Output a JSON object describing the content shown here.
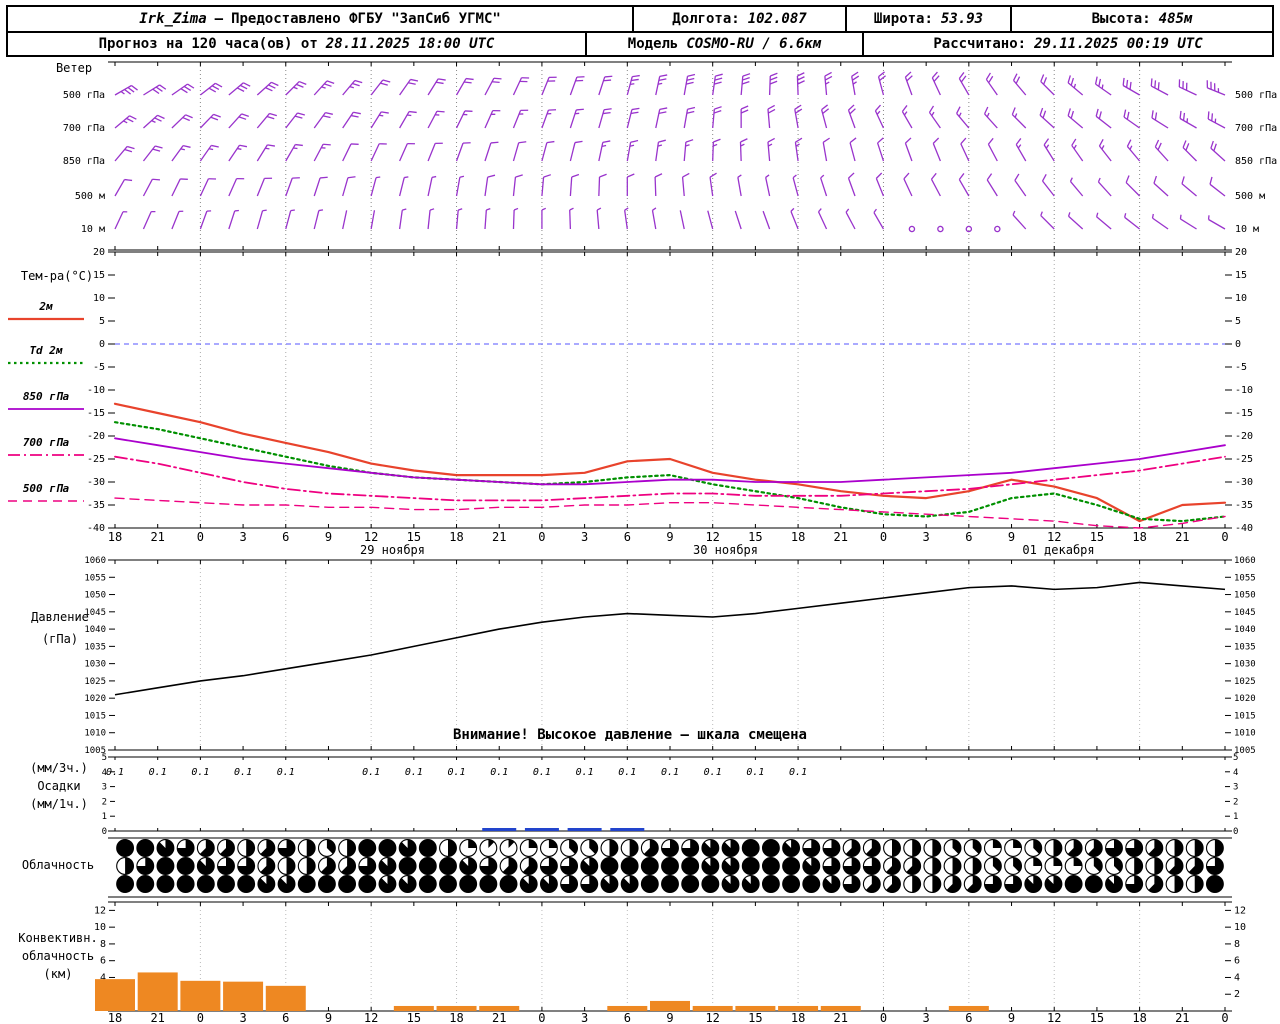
{
  "header": {
    "station": "Irk_Zima",
    "dash": "—",
    "provider": "Предоставлено ФГБУ \"ЗапСиб УГМС\"",
    "lon_label": "Долгота:",
    "lon_value": "102.087",
    "lat_label": "Широта:",
    "lat_value": "53.93",
    "alt_label": "Высота:",
    "alt_value": "485м",
    "forecast_text": "Прогноз на 120 часа(ов) от",
    "forecast_time": "28.11.2025 18:00 UTC",
    "model_label": "Модель",
    "model_value": "COSMO-RU / 6.6км",
    "calc_label": "Рассчитано:",
    "calc_time": "29.11.2025 00:19 UTC"
  },
  "labels": {
    "wind": "Ветер",
    "temp_title": "Тем-ра(°C)",
    "pressure_1": "Давление",
    "pressure_2": "(гПа)",
    "precip_1": "(мм/3ч.)",
    "precip_2": "Осадки",
    "precip_3": "(мм/1ч.)",
    "cloud": "Облачность",
    "conv_1": "Конвективн.",
    "conv_2": "облачность",
    "conv_3": "(км)",
    "pressure_warning": "Внимание! Высокое давление — шкала смещена"
  },
  "chart_data": {
    "type": "meteogram",
    "x": {
      "step_hours": 3,
      "hour_labels": [
        "18",
        "21",
        "0",
        "3",
        "6",
        "9",
        "12",
        "15",
        "18",
        "21",
        "0",
        "3",
        "6",
        "9",
        "12",
        "15",
        "18",
        "21",
        "0",
        "3",
        "6",
        "9",
        "12",
        "15",
        "18",
        "21",
        "0"
      ],
      "date_labels": [
        {
          "label": "29 ноября",
          "pos": 6.5
        },
        {
          "label": "30 ноября",
          "pos": 14.3
        },
        {
          "label": "01 декабря",
          "pos": 22.1
        }
      ]
    },
    "wind": {
      "color": "#9933cc",
      "levels": [
        {
          "label": "500 гПа",
          "dirs": [
            60,
            58,
            55,
            52,
            50,
            48,
            45,
            42,
            40,
            38,
            35,
            32,
            30,
            28,
            25,
            22,
            20,
            18,
            15,
            12,
            10,
            8,
            5,
            2,
            358,
            355,
            350,
            345,
            340,
            335,
            330,
            325,
            320,
            315,
            310,
            305,
            300,
            298,
            295,
            292
          ],
          "spds": [
            18,
            17,
            17,
            16,
            15,
            15,
            14,
            14,
            13,
            12,
            12,
            11,
            10,
            10,
            10,
            11,
            12,
            12,
            13,
            14,
            15,
            15,
            16,
            16,
            15,
            14,
            13,
            12,
            12,
            11,
            10,
            10,
            11,
            12,
            13,
            14,
            15,
            16,
            17,
            18
          ]
        },
        {
          "label": "700 гПа",
          "dirs": [
            50,
            48,
            46,
            44,
            42,
            40,
            38,
            36,
            34,
            32,
            30,
            28,
            26,
            24,
            22,
            20,
            18,
            16,
            14,
            12,
            10,
            5,
            0,
            355,
            350,
            345,
            340,
            335,
            330,
            325,
            320,
            318,
            315,
            312,
            310,
            308,
            305,
            302,
            300,
            298
          ],
          "spds": [
            13,
            13,
            12,
            12,
            11,
            11,
            10,
            10,
            10,
            9,
            9,
            8,
            8,
            8,
            8,
            9,
            9,
            10,
            10,
            10,
            11,
            11,
            12,
            12,
            11,
            10,
            10,
            9,
            9,
            8,
            8,
            8,
            9,
            10,
            10,
            11,
            12,
            12,
            13,
            13
          ]
        },
        {
          "label": "850 гПа",
          "dirs": [
            40,
            38,
            36,
            35,
            34,
            32,
            30,
            28,
            26,
            25,
            24,
            22,
            20,
            18,
            16,
            15,
            14,
            12,
            10,
            8,
            5,
            2,
            358,
            355,
            352,
            350,
            345,
            342,
            340,
            338,
            335,
            332,
            330,
            328,
            325,
            322,
            320,
            318,
            315,
            312
          ],
          "spds": [
            10,
            10,
            9,
            9,
            9,
            8,
            8,
            8,
            7,
            7,
            7,
            6,
            6,
            6,
            6,
            7,
            7,
            8,
            8,
            8,
            9,
            9,
            9,
            8,
            8,
            7,
            7,
            6,
            6,
            6,
            7,
            7,
            8,
            8,
            8,
            9,
            9,
            10,
            10,
            10
          ]
        },
        {
          "label": "500 м",
          "dirs": [
            30,
            28,
            26,
            25,
            24,
            22,
            20,
            18,
            16,
            15,
            14,
            12,
            10,
            8,
            6,
            5,
            4,
            2,
            0,
            358,
            355,
            352,
            350,
            348,
            345,
            342,
            340,
            338,
            335,
            332,
            330,
            328,
            325,
            322,
            320,
            318,
            315,
            312,
            310,
            308
          ],
          "spds": [
            7,
            7,
            6,
            6,
            6,
            5,
            5,
            5,
            5,
            4,
            4,
            4,
            4,
            5,
            5,
            5,
            6,
            6,
            6,
            5,
            5,
            5,
            4,
            4,
            4,
            4,
            5,
            5,
            5,
            6,
            6,
            6,
            5,
            5,
            4,
            4,
            5,
            5,
            6,
            6
          ]
        },
        {
          "label": "10 м",
          "dirs": [
            25,
            24,
            22,
            20,
            18,
            16,
            15,
            14,
            12,
            10,
            8,
            6,
            5,
            4,
            2,
            0,
            358,
            355,
            352,
            350,
            348,
            345,
            342,
            340,
            338,
            335,
            332,
            330,
            328,
            325,
            322,
            320,
            318,
            315,
            312,
            310,
            308,
            305,
            302,
            300
          ],
          "spds": [
            4,
            4,
            4,
            3,
            3,
            3,
            3,
            3,
            2,
            2,
            3,
            3,
            3,
            4,
            4,
            4,
            3,
            3,
            3,
            3,
            2,
            2,
            2,
            2,
            3,
            3,
            3,
            3,
            0,
            0,
            0,
            0,
            3,
            3,
            3,
            4,
            4,
            4,
            3,
            3
          ]
        }
      ]
    },
    "temperature": {
      "ylim": [
        -40,
        20
      ],
      "ytick_step": 5,
      "zero_line_color": "#5555ff",
      "series": [
        {
          "label": "2м",
          "color": "#e8432c",
          "style": "solid",
          "width": 2.2,
          "values": [
            -13,
            -15,
            -17,
            -19.5,
            -21.5,
            -23.5,
            -26,
            -27.5,
            -28.5,
            -28.5,
            -28.5,
            -28,
            -25.5,
            -25,
            -28,
            -29.5,
            -30.5,
            -32,
            -33,
            -33.5,
            -32,
            -29.5,
            -31,
            -33.5,
            -38.5,
            -35,
            -34.5
          ]
        },
        {
          "label": "Td 2м",
          "color": "#009000",
          "style": "dotted",
          "width": 2.2,
          "values": [
            -17,
            -18.5,
            -20.5,
            -22.5,
            -24.5,
            -26.5,
            -28,
            -29,
            -29.5,
            -30,
            -30.5,
            -30,
            -29,
            -28.5,
            -30.5,
            -32,
            -33.5,
            -35.5,
            -37,
            -37.5,
            -36.5,
            -33.5,
            -32.5,
            -35,
            -38,
            -38.5,
            -37.5
          ]
        },
        {
          "label": "850 гПа",
          "color": "#aa00cc",
          "style": "solid",
          "width": 1.8,
          "values": [
            -20.5,
            -22,
            -23.5,
            -25,
            -26,
            -27,
            -28,
            -29,
            -29.5,
            -30,
            -30.5,
            -30.5,
            -30,
            -29.5,
            -29.5,
            -30,
            -30,
            -30,
            -29.5,
            -29,
            -28.5,
            -28,
            -27,
            -26,
            -25,
            -23.5,
            -22
          ]
        },
        {
          "label": "700 гПа",
          "color": "#ee0080",
          "style": "dashdot",
          "width": 1.8,
          "values": [
            -24.5,
            -26,
            -28,
            -30,
            -31.5,
            -32.5,
            -33,
            -33.5,
            -34,
            -34,
            -34,
            -33.5,
            -33,
            -32.5,
            -32.5,
            -33,
            -33,
            -33,
            -32.5,
            -32,
            -31.5,
            -30.5,
            -29.5,
            -28.5,
            -27.5,
            -26,
            -24.5
          ]
        },
        {
          "label": "500 гПа",
          "color": "#ee0080",
          "style": "dashed",
          "width": 1.4,
          "values": [
            -33.5,
            -34,
            -34.5,
            -35,
            -35,
            -35.5,
            -35.5,
            -36,
            -36,
            -35.5,
            -35.5,
            -35,
            -35,
            -34.5,
            -34.5,
            -35,
            -35.5,
            -36,
            -36.5,
            -37,
            -37.5,
            -38,
            -38.5,
            -39.5,
            -40,
            -39,
            -37.5
          ]
        }
      ]
    },
    "pressure": {
      "ylim": [
        1005,
        1060
      ],
      "ytick_step": 5,
      "color": "#000000",
      "values": [
        1021,
        1023,
        1025,
        1026.5,
        1028.5,
        1030.5,
        1032.5,
        1035,
        1037.5,
        1040,
        1042,
        1043.5,
        1044.5,
        1044,
        1043.5,
        1044.5,
        1046,
        1047.5,
        1049,
        1050.5,
        1052,
        1052.5,
        1051.5,
        1052,
        1053.5,
        1052.5,
        1051.5
      ]
    },
    "precipitation": {
      "ylim": [
        0,
        5
      ],
      "bar_color": "#2244cc",
      "labels_3h": [
        0.1,
        0.1,
        0.1,
        0.1,
        0.1,
        null,
        0.1,
        0.1,
        0.1,
        0.1,
        0.1,
        0.1,
        0.1,
        0.1,
        0.1,
        0.1,
        0.1,
        null,
        null,
        null,
        null,
        null,
        null,
        null,
        null,
        null,
        null
      ],
      "bars_1h": [
        0,
        0,
        0,
        0,
        0,
        0,
        0,
        0,
        0,
        0.1,
        0.1,
        0.1,
        0.1,
        0,
        0,
        0,
        0,
        0,
        0,
        0,
        0,
        0,
        0,
        0,
        0,
        0,
        0
      ]
    },
    "cloudiness": {
      "octas_max": 8,
      "rows": [
        [
          8,
          8,
          7,
          6,
          5,
          5,
          4,
          5,
          6,
          4,
          3,
          4,
          8,
          8,
          7,
          8,
          4,
          2,
          1,
          1,
          2,
          2,
          3,
          3,
          4,
          4,
          5,
          6,
          6,
          7,
          7,
          8,
          8,
          7,
          6,
          6,
          5,
          5,
          4,
          4,
          4,
          3,
          3,
          2,
          2,
          3,
          4,
          5,
          5,
          6,
          6,
          5,
          4,
          4,
          4
        ],
        [
          4,
          6,
          8,
          8,
          7,
          6,
          6,
          5,
          4,
          4,
          5,
          5,
          6,
          7,
          8,
          8,
          8,
          7,
          6,
          5,
          5,
          6,
          6,
          7,
          8,
          8,
          8,
          8,
          8,
          7,
          7,
          8,
          8,
          8,
          7,
          6,
          6,
          6,
          5,
          5,
          4,
          4,
          4,
          3,
          3,
          2,
          2,
          2,
          3,
          3,
          4,
          4,
          5,
          5,
          6
        ],
        [
          8,
          8,
          8,
          8,
          8,
          8,
          8,
          7,
          7,
          8,
          8,
          8,
          8,
          7,
          7,
          8,
          8,
          8,
          8,
          8,
          7,
          7,
          6,
          6,
          7,
          7,
          8,
          8,
          8,
          8,
          7,
          7,
          8,
          8,
          8,
          7,
          6,
          5,
          5,
          4,
          4,
          5,
          5,
          6,
          6,
          7,
          7,
          8,
          8,
          7,
          6,
          5,
          4,
          4,
          8
        ]
      ]
    },
    "convective": {
      "ylim": [
        0,
        13
      ],
      "yticks": [
        2,
        4,
        6,
        8,
        10,
        12
      ],
      "bar_color": "#ee8822",
      "values": [
        3.8,
        4.6,
        3.6,
        3.5,
        3.0,
        0,
        0,
        0.6,
        0.6,
        0.6,
        0,
        0,
        0.6,
        1.2,
        0.6,
        0.6,
        0.6,
        0.6,
        0,
        0,
        0.6,
        0,
        0,
        0,
        0,
        0,
        0
      ]
    }
  }
}
